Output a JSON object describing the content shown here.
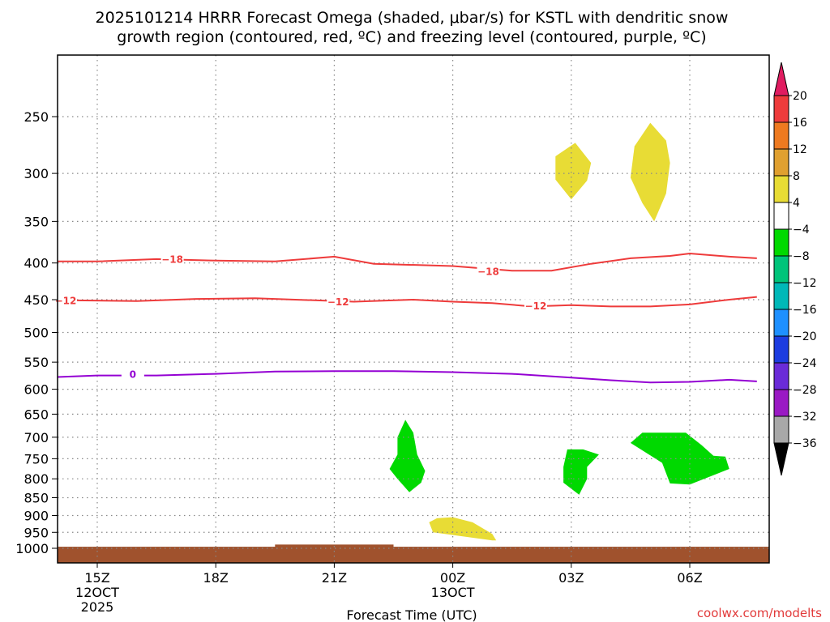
{
  "chart_data": {
    "type": "time-height cross section",
    "title_line1": "2025101214 HRRR Forecast Omega (shaded, μbar/s) for KSTL with dendritic snow",
    "title_line2": "growth region (contoured, red, ºC) and freezing level (contoured, purple, ºC)",
    "xlabel": "Forecast Time (UTC)",
    "ylabel": "",
    "y_scale": "log-pressure (hPa), inverted",
    "ylim": [
      200,
      1050
    ],
    "y_ticks": [
      250,
      300,
      350,
      400,
      450,
      500,
      550,
      600,
      650,
      700,
      750,
      800,
      850,
      900,
      950,
      1000
    ],
    "xlim_hours": [
      13.6,
      31.7
    ],
    "x_ticks": [
      {
        "hour": 15,
        "label": "15Z",
        "date": "12OCT",
        "year": "2025"
      },
      {
        "hour": 18,
        "label": "18Z",
        "date": "",
        "year": ""
      },
      {
        "hour": 21,
        "label": "21Z",
        "date": "",
        "year": ""
      },
      {
        "hour": 24,
        "label": "00Z",
        "date": "13OCT",
        "year": ""
      },
      {
        "hour": 27,
        "label": "03Z",
        "date": "",
        "year": ""
      },
      {
        "hour": 30,
        "label": "06Z",
        "date": "",
        "year": ""
      }
    ],
    "grid": true,
    "contours": [
      {
        "name": "-18",
        "color": "#ee3b3b",
        "label_points": [
          [
            16.9,
            395
          ],
          [
            24.9,
            411
          ]
        ],
        "points": [
          [
            13.6,
            398
          ],
          [
            15,
            398
          ],
          [
            16.5,
            395
          ],
          [
            18,
            397
          ],
          [
            19.5,
            398
          ],
          [
            21,
            392
          ],
          [
            22,
            401
          ],
          [
            24,
            404
          ],
          [
            25.5,
            410
          ],
          [
            26.5,
            410
          ],
          [
            27.5,
            401
          ],
          [
            28.5,
            394
          ],
          [
            29.5,
            391
          ],
          [
            30,
            388
          ],
          [
            31,
            392
          ],
          [
            31.7,
            394
          ]
        ]
      },
      {
        "name": "-12",
        "color": "#ee3b3b",
        "label_points": [
          [
            14.2,
            451
          ],
          [
            21.1,
            453
          ],
          [
            26.1,
            459
          ]
        ],
        "points": [
          [
            13.6,
            455
          ],
          [
            14.2,
            451
          ],
          [
            16,
            452
          ],
          [
            17.5,
            449
          ],
          [
            19,
            448
          ],
          [
            20.5,
            451
          ],
          [
            21.5,
            453
          ],
          [
            23,
            450
          ],
          [
            24,
            453
          ],
          [
            25,
            455
          ],
          [
            26,
            460
          ],
          [
            27,
            458
          ],
          [
            28,
            460
          ],
          [
            29,
            460
          ],
          [
            30,
            457
          ],
          [
            31,
            450
          ],
          [
            31.7,
            446
          ]
        ]
      },
      {
        "name": "0",
        "color": "#9400d3",
        "label_points": [
          [
            15.9,
            572
          ]
        ],
        "points": [
          [
            13.6,
            578
          ],
          [
            15,
            574
          ],
          [
            16.5,
            574
          ],
          [
            18,
            571
          ],
          [
            19.5,
            567
          ],
          [
            21,
            566
          ],
          [
            22.5,
            566
          ],
          [
            24,
            568
          ],
          [
            25.5,
            571
          ],
          [
            27,
            578
          ],
          [
            28,
            583
          ],
          [
            29,
            587
          ],
          [
            30,
            586
          ],
          [
            31,
            582
          ],
          [
            31.7,
            585
          ]
        ]
      }
    ],
    "shaded_regions": [
      {
        "range": "4 to 8",
        "color": "#e8dc35",
        "points": [
          [
            27.1,
            272
          ],
          [
            26.6,
            284
          ],
          [
            26.6,
            306
          ],
          [
            27,
            326
          ],
          [
            27.4,
            307
          ],
          [
            27.5,
            290
          ]
        ]
      },
      {
        "range": "4 to 8",
        "color": "#e8dc35",
        "points": [
          [
            29,
            255
          ],
          [
            28.6,
            275
          ],
          [
            28.5,
            304
          ],
          [
            28.8,
            330
          ],
          [
            29.1,
            350
          ],
          [
            29.4,
            320
          ],
          [
            29.5,
            290
          ],
          [
            29.4,
            270
          ]
        ]
      },
      {
        "range": "4 to 8",
        "color": "#e8dc35",
        "points": [
          [
            23.4,
            920
          ],
          [
            23.5,
            950
          ],
          [
            25,
            975
          ],
          [
            25.1,
            975
          ],
          [
            25,
            955
          ],
          [
            24.5,
            920
          ],
          [
            24,
            905
          ],
          [
            23.6,
            908
          ]
        ]
      },
      {
        "range": "-8 to -4",
        "color": "#00d900",
        "points": [
          [
            22.8,
            662
          ],
          [
            22.6,
            700
          ],
          [
            22.6,
            740
          ],
          [
            22.4,
            775
          ],
          [
            22.6,
            800
          ],
          [
            22.9,
            835
          ],
          [
            23.2,
            810
          ],
          [
            23.3,
            780
          ],
          [
            23.1,
            740
          ],
          [
            23,
            690
          ]
        ]
      },
      {
        "range": "-8 to -4",
        "color": "#00d900",
        "points": [
          [
            26.9,
            728
          ],
          [
            26.8,
            770
          ],
          [
            26.8,
            810
          ],
          [
            27.2,
            842
          ],
          [
            27.4,
            800
          ],
          [
            27.4,
            770
          ],
          [
            27.7,
            740
          ],
          [
            27.3,
            728
          ]
        ]
      },
      {
        "range": "-8 to -4",
        "color": "#00d900",
        "points": [
          [
            28.8,
            690
          ],
          [
            28.5,
            713
          ],
          [
            29.3,
            760
          ],
          [
            29.5,
            812
          ],
          [
            30,
            815
          ],
          [
            31,
            775
          ],
          [
            30.9,
            745
          ],
          [
            30.6,
            743
          ],
          [
            30.3,
            718
          ],
          [
            29.9,
            690
          ]
        ]
      }
    ],
    "terrain": {
      "color": "#a0522d",
      "top_hpa": 995,
      "bump": {
        "from_hour": 19.5,
        "to_hour": 22.5,
        "top_hpa": 988
      }
    },
    "colorbar": {
      "labels": [
        "20",
        "16",
        "12",
        "8",
        "4",
        "-4",
        "-8",
        "-12",
        "-16",
        "-20",
        "-24",
        "-28",
        "-32",
        "-36"
      ],
      "colors": [
        "#e01c60",
        "#ee3b3b",
        "#ee7a20",
        "#e0a030",
        "#e8dc35",
        "#ffffff",
        "#00d900",
        "#00c47a",
        "#00b8b8",
        "#1e90ff",
        "#1c3ce0",
        "#6a2bd8",
        "#9a19c4",
        "#a8a8a8",
        "#000000"
      ]
    }
  },
  "credit": "coolwx.com/modelts"
}
